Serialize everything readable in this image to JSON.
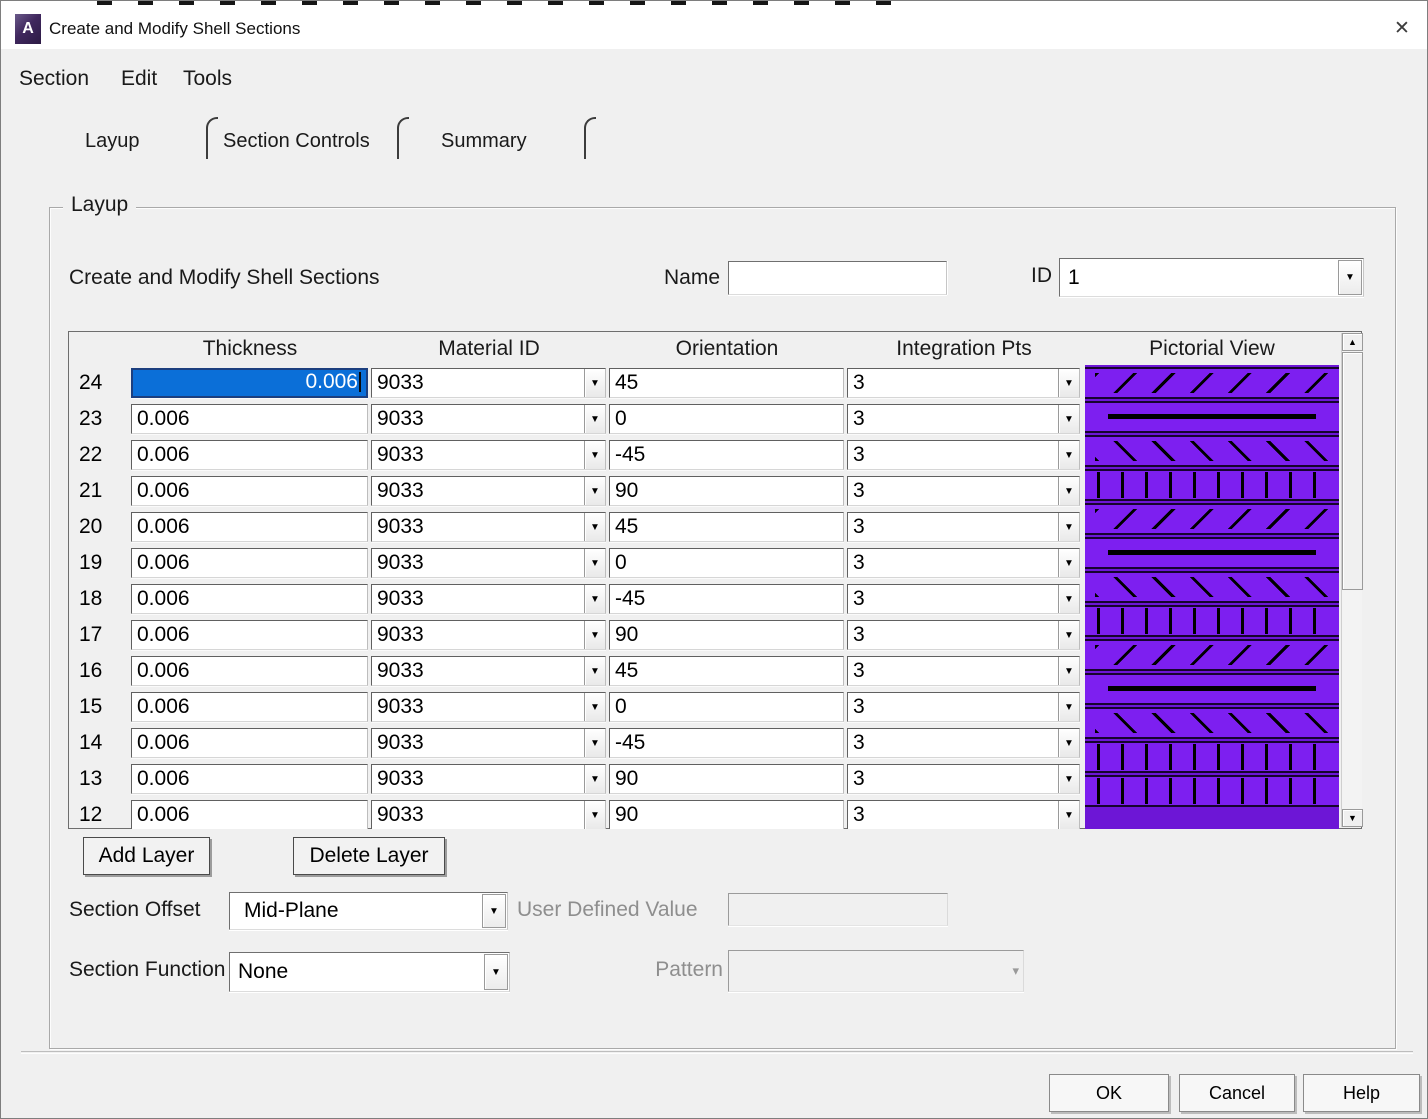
{
  "window": {
    "title": "Create and Modify Shell Sections"
  },
  "icons": {
    "app_logo_letter": "A",
    "close": "✕",
    "combo_arrow": "▼",
    "scroll_up": "▲",
    "scroll_down": "▼",
    "disabled_combo_arrow": "▾"
  },
  "menu": {
    "items": [
      "Section",
      "Edit",
      "Tools"
    ]
  },
  "tabs": [
    {
      "label": "Layup"
    },
    {
      "label": "Section Controls"
    },
    {
      "label": "Summary"
    }
  ],
  "group": {
    "label": "Layup"
  },
  "form": {
    "heading": "Create and Modify Shell Sections",
    "name_label": "Name",
    "name_value": "",
    "id_label": "ID",
    "id_value": "1"
  },
  "table": {
    "columns": [
      "Thickness",
      "Material ID",
      "Orientation",
      "Integration Pts",
      "Pictorial View"
    ],
    "rows": [
      {
        "num": "24",
        "thickness": "0.006",
        "material": "9033",
        "orientation": "45",
        "intpts": "3",
        "pattern": "p45",
        "selected": true
      },
      {
        "num": "23",
        "thickness": "0.006",
        "material": "9033",
        "orientation": "0",
        "intpts": "3",
        "pattern": "p0",
        "selected": false
      },
      {
        "num": "22",
        "thickness": "0.006",
        "material": "9033",
        "orientation": "-45",
        "intpts": "3",
        "pattern": "pm45",
        "selected": false
      },
      {
        "num": "21",
        "thickness": "0.006",
        "material": "9033",
        "orientation": "90",
        "intpts": "3",
        "pattern": "p90",
        "selected": false
      },
      {
        "num": "20",
        "thickness": "0.006",
        "material": "9033",
        "orientation": "45",
        "intpts": "3",
        "pattern": "p45",
        "selected": false
      },
      {
        "num": "19",
        "thickness": "0.006",
        "material": "9033",
        "orientation": "0",
        "intpts": "3",
        "pattern": "p0",
        "selected": false
      },
      {
        "num": "18",
        "thickness": "0.006",
        "material": "9033",
        "orientation": "-45",
        "intpts": "3",
        "pattern": "pm45",
        "selected": false
      },
      {
        "num": "17",
        "thickness": "0.006",
        "material": "9033",
        "orientation": "90",
        "intpts": "3",
        "pattern": "p90",
        "selected": false
      },
      {
        "num": "16",
        "thickness": "0.006",
        "material": "9033",
        "orientation": "45",
        "intpts": "3",
        "pattern": "p45",
        "selected": false
      },
      {
        "num": "15",
        "thickness": "0.006",
        "material": "9033",
        "orientation": "0",
        "intpts": "3",
        "pattern": "p0",
        "selected": false
      },
      {
        "num": "14",
        "thickness": "0.006",
        "material": "9033",
        "orientation": "-45",
        "intpts": "3",
        "pattern": "pm45",
        "selected": false
      },
      {
        "num": "13",
        "thickness": "0.006",
        "material": "9033",
        "orientation": "90",
        "intpts": "3",
        "pattern": "p90",
        "selected": false
      },
      {
        "num": "12",
        "thickness": "0.006",
        "material": "9033",
        "orientation": "90",
        "intpts": "3",
        "pattern": "p90",
        "selected": false
      }
    ]
  },
  "layer_buttons": {
    "add": "Add Layer",
    "delete": "Delete Layer"
  },
  "offset": {
    "label": "Section Offset",
    "value": "Mid-Plane",
    "user_defined_label": "User Defined Value",
    "user_defined_value": ""
  },
  "function": {
    "label": "Section Function",
    "value": "None",
    "pattern_label": "Pattern",
    "pattern_value": ""
  },
  "footer_buttons": {
    "ok": "OK",
    "cancel": "Cancel",
    "help": "Help"
  },
  "colors": {
    "ply_purple": "#7d1ff0",
    "ply_purple_dark": "#6d16d6",
    "selection_blue": "#0b6fd8",
    "dialog_bg": "#f0f0f0"
  }
}
